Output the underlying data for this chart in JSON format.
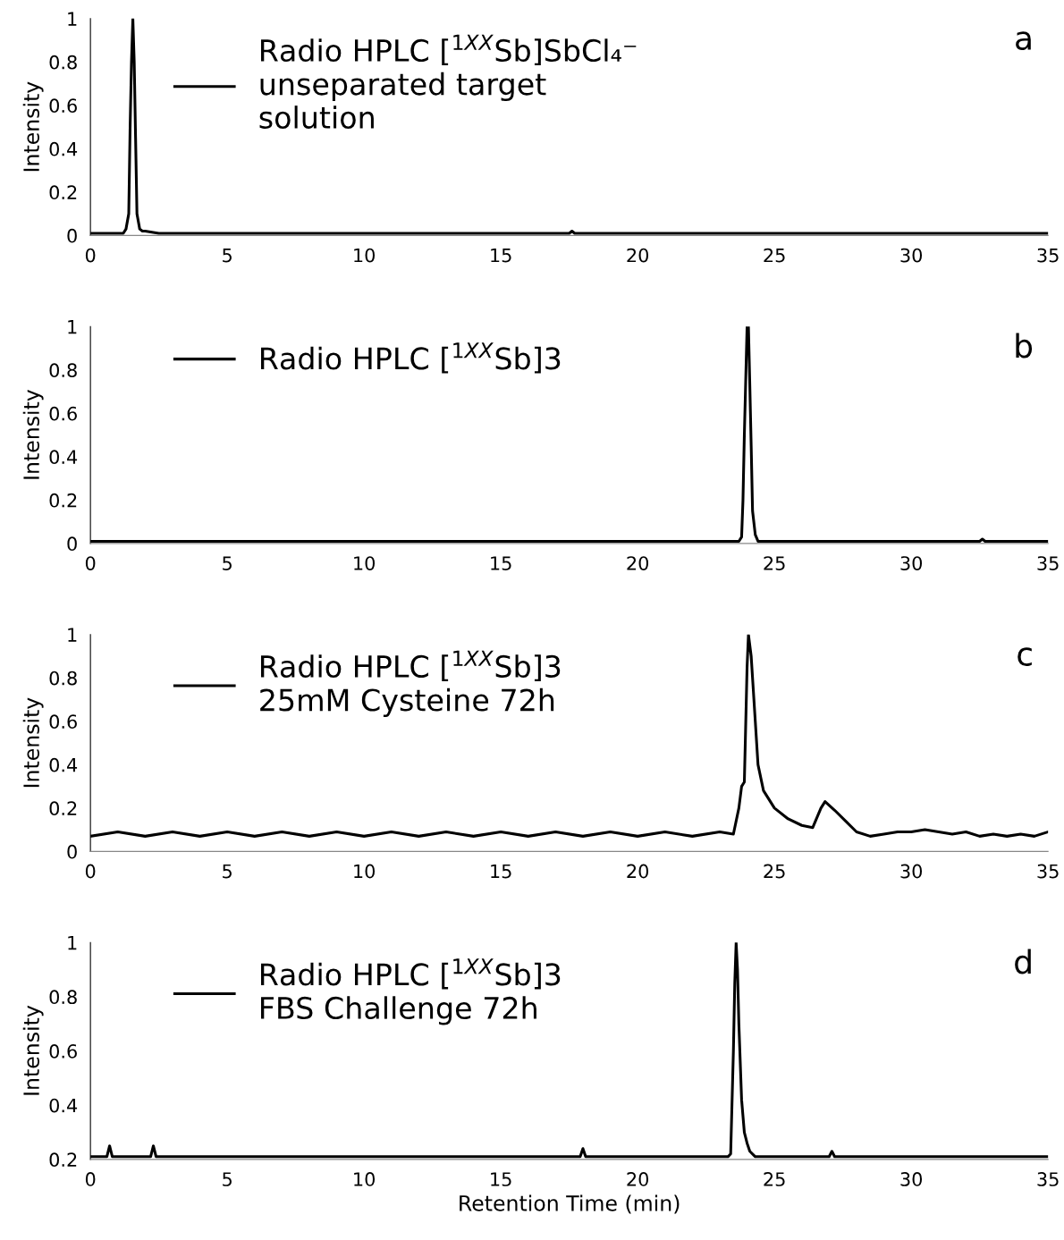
{
  "chart_data": [
    {
      "type": "line",
      "ylabel": "Intensity",
      "annotations": [
        "a"
      ],
      "legend": "top left",
      "xlim": [
        0,
        35
      ],
      "xticks": [
        0,
        5,
        10,
        15,
        20,
        25,
        30,
        35
      ],
      "ylim": [
        0,
        1
      ],
      "yticks": [
        0,
        0.2,
        0.4,
        0.6,
        0.8,
        1
      ],
      "grid": false,
      "series": [
        {
          "name": "Radio HPLC [$^{1XX}$Sb]SbCl₄⁻\nunseparated target\nsolution",
          "color": "#000000",
          "x": [
            0,
            1.2,
            1.3,
            1.4,
            1.45,
            1.5,
            1.55,
            1.6,
            1.65,
            1.7,
            1.8,
            1.9,
            2.0,
            2.5,
            17.5,
            17.6,
            17.7,
            35
          ],
          "values": [
            0.01,
            0.01,
            0.03,
            0.1,
            0.5,
            0.8,
            1.0,
            0.8,
            0.45,
            0.1,
            0.03,
            0.02,
            0.02,
            0.01,
            0.01,
            0.02,
            0.01,
            0.01
          ]
        }
      ]
    },
    {
      "type": "line",
      "ylabel": "Intensity",
      "annotations": [
        "b"
      ],
      "legend": "top left",
      "xlim": [
        0,
        35
      ],
      "xticks": [
        0,
        5,
        10,
        15,
        20,
        25,
        30,
        35
      ],
      "ylim": [
        0,
        1
      ],
      "yticks": [
        0,
        0.2,
        0.4,
        0.6,
        0.8,
        1
      ],
      "grid": false,
      "series": [
        {
          "name": "Radio HPLC [$^{1XX}$Sb]3",
          "color": "#000000",
          "x": [
            0,
            10,
            23.7,
            23.8,
            23.85,
            23.9,
            23.95,
            24.0,
            24.05,
            24.1,
            24.15,
            24.2,
            24.3,
            24.4,
            32.5,
            32.6,
            32.7,
            35
          ],
          "values": [
            0.01,
            0.01,
            0.01,
            0.03,
            0.2,
            0.5,
            0.75,
            1.0,
            1.0,
            0.73,
            0.45,
            0.15,
            0.04,
            0.01,
            0.01,
            0.02,
            0.01,
            0.01
          ]
        }
      ]
    },
    {
      "type": "line",
      "ylabel": "Intensity",
      "annotations": [
        "c"
      ],
      "legend": "top left",
      "xlim": [
        0,
        35
      ],
      "xticks": [
        0,
        5,
        10,
        15,
        20,
        25,
        30,
        35
      ],
      "ylim": [
        0,
        1
      ],
      "yticks": [
        0,
        0.2,
        0.4,
        0.6,
        0.8,
        1
      ],
      "grid": false,
      "series": [
        {
          "name": "Radio HPLC [$^{1XX}$Sb]3\n25mM Cysteine 72h",
          "color": "#000000",
          "x": [
            0,
            1,
            2,
            3,
            4,
            5,
            6,
            7,
            8,
            9,
            10,
            11,
            12,
            13,
            14,
            15,
            16,
            17,
            18,
            19,
            20,
            21,
            22,
            23,
            23.5,
            23.7,
            23.8,
            23.9,
            24.0,
            24.05,
            24.15,
            24.3,
            24.4,
            24.6,
            25.0,
            25.5,
            26.0,
            26.4,
            26.7,
            26.85,
            27.2,
            27.6,
            28.0,
            28.5,
            29,
            29.5,
            30,
            30.5,
            31,
            31.5,
            32,
            32.5,
            33,
            33.5,
            34,
            34.5,
            35
          ],
          "values": [
            0.07,
            0.09,
            0.07,
            0.09,
            0.07,
            0.09,
            0.07,
            0.09,
            0.07,
            0.09,
            0.07,
            0.09,
            0.07,
            0.09,
            0.07,
            0.09,
            0.07,
            0.09,
            0.07,
            0.09,
            0.07,
            0.09,
            0.07,
            0.09,
            0.08,
            0.2,
            0.3,
            0.32,
            0.85,
            1.0,
            0.9,
            0.6,
            0.4,
            0.28,
            0.2,
            0.15,
            0.12,
            0.11,
            0.2,
            0.23,
            0.19,
            0.14,
            0.09,
            0.07,
            0.08,
            0.09,
            0.09,
            0.1,
            0.09,
            0.08,
            0.09,
            0.07,
            0.08,
            0.07,
            0.08,
            0.07,
            0.09
          ]
        }
      ]
    },
    {
      "type": "line",
      "ylabel": "Intensity",
      "xlabel": "Retention Time (min)",
      "annotations": [
        "d"
      ],
      "legend": "top left",
      "xlim": [
        0,
        35
      ],
      "xticks": [
        0,
        5,
        10,
        15,
        20,
        25,
        30,
        35
      ],
      "ylim": [
        0.2,
        1
      ],
      "yticks": [
        0.2,
        0.4,
        0.6,
        0.8,
        1
      ],
      "grid": false,
      "series": [
        {
          "name": "Radio HPLC [$^{1XX}$Sb]3\nFBS Challenge 72h",
          "color": "#000000",
          "x": [
            0,
            0.6,
            0.7,
            0.8,
            2.2,
            2.3,
            2.4,
            8,
            17.9,
            18,
            18.1,
            23.3,
            23.4,
            23.5,
            23.55,
            23.6,
            23.65,
            23.7,
            23.8,
            23.9,
            24.0,
            24.1,
            24.3,
            27,
            27.1,
            27.2,
            35
          ],
          "values": [
            0.21,
            0.21,
            0.25,
            0.21,
            0.21,
            0.25,
            0.21,
            0.21,
            0.21,
            0.24,
            0.21,
            0.21,
            0.22,
            0.6,
            0.85,
            1.0,
            0.9,
            0.7,
            0.42,
            0.3,
            0.26,
            0.23,
            0.21,
            0.21,
            0.23,
            0.21,
            0.21
          ]
        }
      ]
    }
  ]
}
